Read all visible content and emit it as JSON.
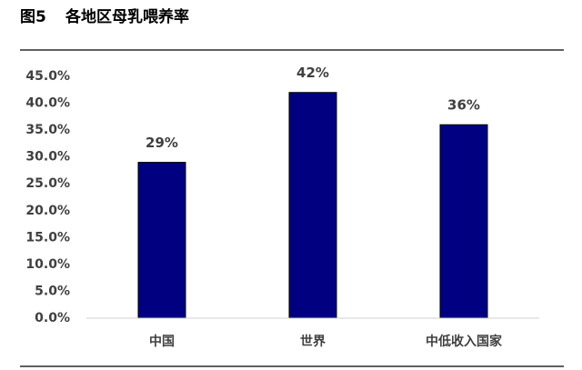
{
  "chart_data": {
    "type": "bar",
    "figure_number": "图5",
    "title": "各地区母乳喂养率",
    "categories": [
      "中国",
      "世界",
      "中低收入国家"
    ],
    "values": [
      29,
      42,
      36
    ],
    "value_labels": [
      "29%",
      "42%",
      "36%"
    ],
    "color": "#000080",
    "ylim": [
      0,
      45
    ],
    "yticks": [
      {
        "value": 0,
        "label": "0.0%"
      },
      {
        "value": 5,
        "label": "5.0%"
      },
      {
        "value": 10,
        "label": "10.0%"
      },
      {
        "value": 15,
        "label": "15.0%"
      },
      {
        "value": 20,
        "label": "20.0%"
      },
      {
        "value": 25,
        "label": "25.0%"
      },
      {
        "value": 30,
        "label": "30.0%"
      },
      {
        "value": 35,
        "label": "35.0%"
      },
      {
        "value": 40,
        "label": "40.0%"
      },
      {
        "value": 45,
        "label": "45.0%"
      }
    ],
    "grid": false
  }
}
